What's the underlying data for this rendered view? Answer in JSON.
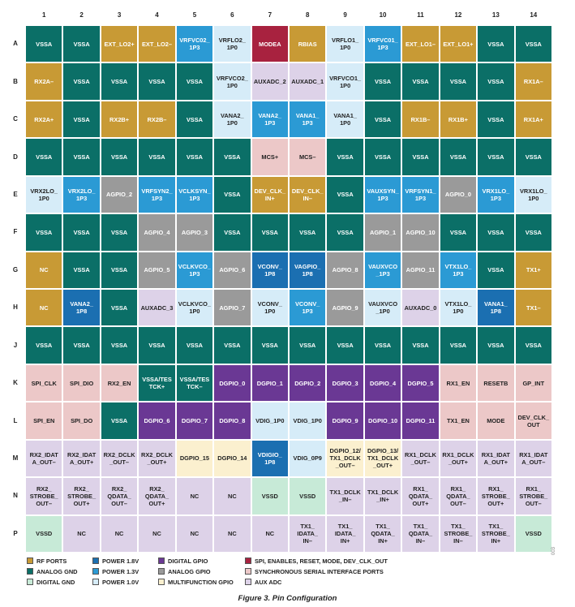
{
  "colors": {
    "rf": "#c89a35",
    "agnd": "#0b6f67",
    "dgnd": "#c7ead7",
    "p18": "#1b6fb1",
    "p13": "#2b9ad4",
    "p10": "#d6ecf8",
    "dgpio": "#6a3894",
    "agpio": "#9a9a9a",
    "mfgpio": "#fbf0cf",
    "spi": "#a8223f",
    "ssi": "#ecc8c8",
    "aux": "#ddd2e8"
  },
  "text_colors": {
    "rf": "#ffffff",
    "agnd": "#ffffff",
    "dgnd": "#222222",
    "p18": "#ffffff",
    "p13": "#ffffff",
    "p10": "#222222",
    "dgpio": "#ffffff",
    "agpio": "#ffffff",
    "mfgpio": "#222222",
    "spi": "#ffffff",
    "ssi": "#222222",
    "aux": "#222222"
  },
  "columns": [
    "1",
    "2",
    "3",
    "4",
    "5",
    "6",
    "7",
    "8",
    "9",
    "10",
    "11",
    "12",
    "13",
    "14"
  ],
  "rows": [
    {
      "label": "A",
      "cells": [
        {
          "t": "VSSA",
          "c": "agnd"
        },
        {
          "t": "VSSA",
          "c": "agnd"
        },
        {
          "t": "EXT_LO2+",
          "c": "rf"
        },
        {
          "t": "EXT_LO2–",
          "c": "rf"
        },
        {
          "t": "VRFVC02_\n1P3",
          "c": "p13"
        },
        {
          "t": "VRFLO2_\n1P0",
          "c": "p10"
        },
        {
          "t": "MODEA",
          "c": "spi"
        },
        {
          "t": "RBIAS",
          "c": "rf"
        },
        {
          "t": "VRFLO1_\n1P0",
          "c": "p10"
        },
        {
          "t": "VRFVC01_\n1P3",
          "c": "p13"
        },
        {
          "t": "EXT_LO1–",
          "c": "rf"
        },
        {
          "t": "EXT_LO1+",
          "c": "rf"
        },
        {
          "t": "VSSA",
          "c": "agnd"
        },
        {
          "t": "VSSA",
          "c": "agnd"
        }
      ]
    },
    {
      "label": "B",
      "cells": [
        {
          "t": "RX2A–",
          "c": "rf"
        },
        {
          "t": "VSSA",
          "c": "agnd"
        },
        {
          "t": "VSSA",
          "c": "agnd"
        },
        {
          "t": "VSSA",
          "c": "agnd"
        },
        {
          "t": "VSSA",
          "c": "agnd"
        },
        {
          "t": "VRFVCO2_\n1P0",
          "c": "p10"
        },
        {
          "t": "AUXADC_2",
          "c": "aux"
        },
        {
          "t": "AUXADC_1",
          "c": "aux"
        },
        {
          "t": "VRFVCO1_\n1P0",
          "c": "p10"
        },
        {
          "t": "VSSA",
          "c": "agnd"
        },
        {
          "t": "VSSA",
          "c": "agnd"
        },
        {
          "t": "VSSA",
          "c": "agnd"
        },
        {
          "t": "VSSA",
          "c": "agnd"
        },
        {
          "t": "RX1A–",
          "c": "rf"
        }
      ]
    },
    {
      "label": "C",
      "cells": [
        {
          "t": "RX2A+",
          "c": "rf"
        },
        {
          "t": "VSSA",
          "c": "agnd"
        },
        {
          "t": "RX2B+",
          "c": "rf"
        },
        {
          "t": "RX2B–",
          "c": "rf"
        },
        {
          "t": "VSSA",
          "c": "agnd"
        },
        {
          "t": "VANA2_\n1P0",
          "c": "p10"
        },
        {
          "t": "VANA2_\n1P3",
          "c": "p13"
        },
        {
          "t": "VANA1_\n1P3",
          "c": "p13"
        },
        {
          "t": "VANA1_\n1P0",
          "c": "p10"
        },
        {
          "t": "VSSA",
          "c": "agnd"
        },
        {
          "t": "RX1B–",
          "c": "rf"
        },
        {
          "t": "RX1B+",
          "c": "rf"
        },
        {
          "t": "VSSA",
          "c": "agnd"
        },
        {
          "t": "RX1A+",
          "c": "rf"
        }
      ]
    },
    {
      "label": "D",
      "cells": [
        {
          "t": "VSSA",
          "c": "agnd"
        },
        {
          "t": "VSSA",
          "c": "agnd"
        },
        {
          "t": "VSSA",
          "c": "agnd"
        },
        {
          "t": "VSSA",
          "c": "agnd"
        },
        {
          "t": "VSSA",
          "c": "agnd"
        },
        {
          "t": "VSSA",
          "c": "agnd"
        },
        {
          "t": "MCS+",
          "c": "ssi"
        },
        {
          "t": "MCS–",
          "c": "ssi"
        },
        {
          "t": "VSSA",
          "c": "agnd"
        },
        {
          "t": "VSSA",
          "c": "agnd"
        },
        {
          "t": "VSSA",
          "c": "agnd"
        },
        {
          "t": "VSSA",
          "c": "agnd"
        },
        {
          "t": "VSSA",
          "c": "agnd"
        },
        {
          "t": "VSSA",
          "c": "agnd"
        }
      ]
    },
    {
      "label": "E",
      "cells": [
        {
          "t": "VRX2LO_\n1P0",
          "c": "p10"
        },
        {
          "t": "VRX2LO_\n1P3",
          "c": "p13"
        },
        {
          "t": "AGPIO_2",
          "c": "agpio"
        },
        {
          "t": "VRFSYN2_\n1P3",
          "c": "p13"
        },
        {
          "t": "VCLKSYN_\n1P3",
          "c": "p13"
        },
        {
          "t": "VSSA",
          "c": "agnd"
        },
        {
          "t": "DEV_CLK_\nIN+",
          "c": "rf"
        },
        {
          "t": "DEV_CLK_\nIN–",
          "c": "rf"
        },
        {
          "t": "VSSA",
          "c": "agnd"
        },
        {
          "t": "VAUXSYN_\n1P3",
          "c": "p13"
        },
        {
          "t": "VRFSYN1_\n1P3",
          "c": "p13"
        },
        {
          "t": "AGPIO_0",
          "c": "agpio"
        },
        {
          "t": "VRX1LO_\n1P3",
          "c": "p13"
        },
        {
          "t": "VRX1LO_\n1P0",
          "c": "p10"
        }
      ]
    },
    {
      "label": "F",
      "cells": [
        {
          "t": "VSSA",
          "c": "agnd"
        },
        {
          "t": "VSSA",
          "c": "agnd"
        },
        {
          "t": "VSSA",
          "c": "agnd"
        },
        {
          "t": "AGPIO_4",
          "c": "agpio"
        },
        {
          "t": "AGPIO_3",
          "c": "agpio"
        },
        {
          "t": "VSSA",
          "c": "agnd"
        },
        {
          "t": "VSSA",
          "c": "agnd"
        },
        {
          "t": "VSSA",
          "c": "agnd"
        },
        {
          "t": "VSSA",
          "c": "agnd"
        },
        {
          "t": "AGPIO_1",
          "c": "agpio"
        },
        {
          "t": "AGPIO_10",
          "c": "agpio"
        },
        {
          "t": "VSSA",
          "c": "agnd"
        },
        {
          "t": "VSSA",
          "c": "agnd"
        },
        {
          "t": "VSSA",
          "c": "agnd"
        }
      ]
    },
    {
      "label": "G",
      "cells": [
        {
          "t": "NC",
          "c": "rf"
        },
        {
          "t": "VSSA",
          "c": "agnd"
        },
        {
          "t": "VSSA",
          "c": "agnd"
        },
        {
          "t": "AGPIO_5",
          "c": "agpio"
        },
        {
          "t": "VCLKVCO_\n1P3",
          "c": "p13"
        },
        {
          "t": "AGPIO_6",
          "c": "agpio"
        },
        {
          "t": "VCONV_\n1P8",
          "c": "p18"
        },
        {
          "t": "VAGPIO_\n1P8",
          "c": "p18"
        },
        {
          "t": "AGPIO_8",
          "c": "agpio"
        },
        {
          "t": "VAUXVCO\n_1P3",
          "c": "p13"
        },
        {
          "t": "AGPIO_11",
          "c": "agpio"
        },
        {
          "t": "VTX1LO_\n1P3",
          "c": "p13"
        },
        {
          "t": "VSSA",
          "c": "agnd"
        },
        {
          "t": "TX1+",
          "c": "rf"
        }
      ]
    },
    {
      "label": "H",
      "cells": [
        {
          "t": "NC",
          "c": "rf"
        },
        {
          "t": "VANA2_\n1P8",
          "c": "p18"
        },
        {
          "t": "VSSA",
          "c": "agnd"
        },
        {
          "t": "AUXADC_3",
          "c": "aux"
        },
        {
          "t": "VCLKVCO_\n1P0",
          "c": "p10"
        },
        {
          "t": "AGPIO_7",
          "c": "agpio"
        },
        {
          "t": "VCONV_\n1P0",
          "c": "p10"
        },
        {
          "t": "VCONV_\n1P3",
          "c": "p13"
        },
        {
          "t": "AGPIO_9",
          "c": "agpio"
        },
        {
          "t": "VAUXVCO\n_1P0",
          "c": "p10"
        },
        {
          "t": "AUXADC_0",
          "c": "aux"
        },
        {
          "t": "VTX1LO_\n1P0",
          "c": "p10"
        },
        {
          "t": "VANA1_\n1P8",
          "c": "p18"
        },
        {
          "t": "TX1–",
          "c": "rf"
        }
      ]
    },
    {
      "label": "J",
      "cells": [
        {
          "t": "VSSA",
          "c": "agnd"
        },
        {
          "t": "VSSA",
          "c": "agnd"
        },
        {
          "t": "VSSA",
          "c": "agnd"
        },
        {
          "t": "VSSA",
          "c": "agnd"
        },
        {
          "t": "VSSA",
          "c": "agnd"
        },
        {
          "t": "VSSA",
          "c": "agnd"
        },
        {
          "t": "VSSA",
          "c": "agnd"
        },
        {
          "t": "VSSA",
          "c": "agnd"
        },
        {
          "t": "VSSA",
          "c": "agnd"
        },
        {
          "t": "VSSA",
          "c": "agnd"
        },
        {
          "t": "VSSA",
          "c": "agnd"
        },
        {
          "t": "VSSA",
          "c": "agnd"
        },
        {
          "t": "VSSA",
          "c": "agnd"
        },
        {
          "t": "VSSA",
          "c": "agnd"
        }
      ]
    },
    {
      "label": "K",
      "cells": [
        {
          "t": "SPI_CLK",
          "c": "ssi"
        },
        {
          "t": "SPI_DIO",
          "c": "ssi"
        },
        {
          "t": "RX2_EN",
          "c": "ssi"
        },
        {
          "t": "VSSA/TES\nTCK+",
          "c": "agnd"
        },
        {
          "t": "VSSA/TES\nTCK–",
          "c": "agnd"
        },
        {
          "t": "DGPIO_0",
          "c": "dgpio"
        },
        {
          "t": "DGPIO_1",
          "c": "dgpio"
        },
        {
          "t": "DGPIO_2",
          "c": "dgpio"
        },
        {
          "t": "DGPIO_3",
          "c": "dgpio"
        },
        {
          "t": "DGPIO_4",
          "c": "dgpio"
        },
        {
          "t": "DGPIO_5",
          "c": "dgpio"
        },
        {
          "t": "RX1_EN",
          "c": "ssi"
        },
        {
          "t": "RESETB",
          "c": "ssi"
        },
        {
          "t": "GP_INT",
          "c": "ssi"
        }
      ]
    },
    {
      "label": "L",
      "cells": [
        {
          "t": "SPI_EN",
          "c": "ssi"
        },
        {
          "t": "SPI_DO",
          "c": "ssi"
        },
        {
          "t": "VSSA",
          "c": "agnd"
        },
        {
          "t": "DGPIO_6",
          "c": "dgpio"
        },
        {
          "t": "DGPIO_7",
          "c": "dgpio"
        },
        {
          "t": "DGPIO_8",
          "c": "dgpio"
        },
        {
          "t": "VDIG_1P0",
          "c": "p10"
        },
        {
          "t": "VDIG_1P0",
          "c": "p10"
        },
        {
          "t": "DGPIO_9",
          "c": "dgpio"
        },
        {
          "t": "DGPIO_10",
          "c": "dgpio"
        },
        {
          "t": "DGPIO_11",
          "c": "dgpio"
        },
        {
          "t": "TX1_EN",
          "c": "ssi"
        },
        {
          "t": "MODE",
          "c": "ssi"
        },
        {
          "t": "DEV_CLK_\nOUT",
          "c": "ssi"
        }
      ]
    },
    {
      "label": "M",
      "cells": [
        {
          "t": "RX2_IDAT\nA_OUT–",
          "c": "aux"
        },
        {
          "t": "RX2_IDAT\nA_OUT+",
          "c": "aux"
        },
        {
          "t": "RX2_DCLK\n_OUT–",
          "c": "aux"
        },
        {
          "t": "RX2_DCLK\n_OUT+",
          "c": "aux"
        },
        {
          "t": "DGPIO_15",
          "c": "mfgpio"
        },
        {
          "t": "DGPIO_14",
          "c": "mfgpio"
        },
        {
          "t": "VDIGIO_\n1P8",
          "c": "p18"
        },
        {
          "t": "VDIG_0P9",
          "c": "p10"
        },
        {
          "t": "DGPIO_12/\nTX1_DCLK\n_OUT–",
          "c": "mfgpio"
        },
        {
          "t": "DGPIO_13/\nTX1_DCLK\n_OUT+",
          "c": "mfgpio"
        },
        {
          "t": "RX1_DCLK\n_OUT–",
          "c": "aux"
        },
        {
          "t": "RX1_DCLK\n_OUT+",
          "c": "aux"
        },
        {
          "t": "RX1_IDAT\nA_OUT+",
          "c": "aux"
        },
        {
          "t": "RX1_IDAT\nA_OUT–",
          "c": "aux"
        }
      ]
    },
    {
      "label": "N",
      "cells": [
        {
          "t": "RX2_\nSTROBE_\nOUT–",
          "c": "aux"
        },
        {
          "t": "RX2_\nSTROBE_\nOUT+",
          "c": "aux"
        },
        {
          "t": "RX2_\nQDATA_\nOUT–",
          "c": "aux"
        },
        {
          "t": "RX2_\nQDATA_\nOUT+",
          "c": "aux"
        },
        {
          "t": "NC",
          "c": "aux"
        },
        {
          "t": "NC",
          "c": "aux"
        },
        {
          "t": "VSSD",
          "c": "dgnd"
        },
        {
          "t": "VSSD",
          "c": "dgnd"
        },
        {
          "t": "TX1_DCLK\n_IN–",
          "c": "aux"
        },
        {
          "t": "TX1_DCLK\n_IN+",
          "c": "aux"
        },
        {
          "t": "RX1_\nQDATA_\nOUT+",
          "c": "aux"
        },
        {
          "t": "RX1_\nQDATA_\nOUT–",
          "c": "aux"
        },
        {
          "t": "RX1_\nSTROBE_\nOUT+",
          "c": "aux"
        },
        {
          "t": "RX1_\nSTROBE_\nOUT–",
          "c": "aux"
        }
      ]
    },
    {
      "label": "P",
      "cells": [
        {
          "t": "VSSD",
          "c": "dgnd"
        },
        {
          "t": "NC",
          "c": "aux"
        },
        {
          "t": "NC",
          "c": "aux"
        },
        {
          "t": "NC",
          "c": "aux"
        },
        {
          "t": "NC",
          "c": "aux"
        },
        {
          "t": "NC",
          "c": "aux"
        },
        {
          "t": "NC",
          "c": "aux"
        },
        {
          "t": "TX1_\nIDATA_\nIN–",
          "c": "aux"
        },
        {
          "t": "TX1_\nIDATA_\nIN+",
          "c": "aux"
        },
        {
          "t": "TX1_\nQDATA_\nIN+",
          "c": "aux"
        },
        {
          "t": "TX1_\nQDATA_\nIN–",
          "c": "aux"
        },
        {
          "t": "TX1_\nSTROBE_\nIN–",
          "c": "aux"
        },
        {
          "t": "TX1_\nSTROBE_\nIN+",
          "c": "aux"
        },
        {
          "t": "VSSD",
          "c": "dgnd"
        }
      ]
    }
  ],
  "legend": [
    {
      "c": "rf",
      "label": "RF PORTS"
    },
    {
      "c": "p18",
      "label": "POWER 1.8V"
    },
    {
      "c": "dgpio",
      "label": "DIGITAL GPIO"
    },
    {
      "c": "spi",
      "label": "SPI, ENABLES, RESET, MODE, DEV_CLK_OUT"
    },
    {
      "c": "agnd",
      "label": "ANALOG GND"
    },
    {
      "c": "p13",
      "label": "POWER 1.3V"
    },
    {
      "c": "agpio",
      "label": "ANALOG GPIO"
    },
    {
      "c": "ssi",
      "label": "SYNCHRONOUS SERIAL INTERFACE PORTS"
    },
    {
      "c": "dgnd",
      "label": "DIGITAL GND"
    },
    {
      "c": "p10",
      "label": "POWER 1.0V"
    },
    {
      "c": "mfgpio",
      "label": "MULTIFUNCTION GPIO"
    },
    {
      "c": "aux",
      "label": "AUX ADC"
    }
  ],
  "caption": "Figure 3. Pin Configuration",
  "figure_id": "003"
}
